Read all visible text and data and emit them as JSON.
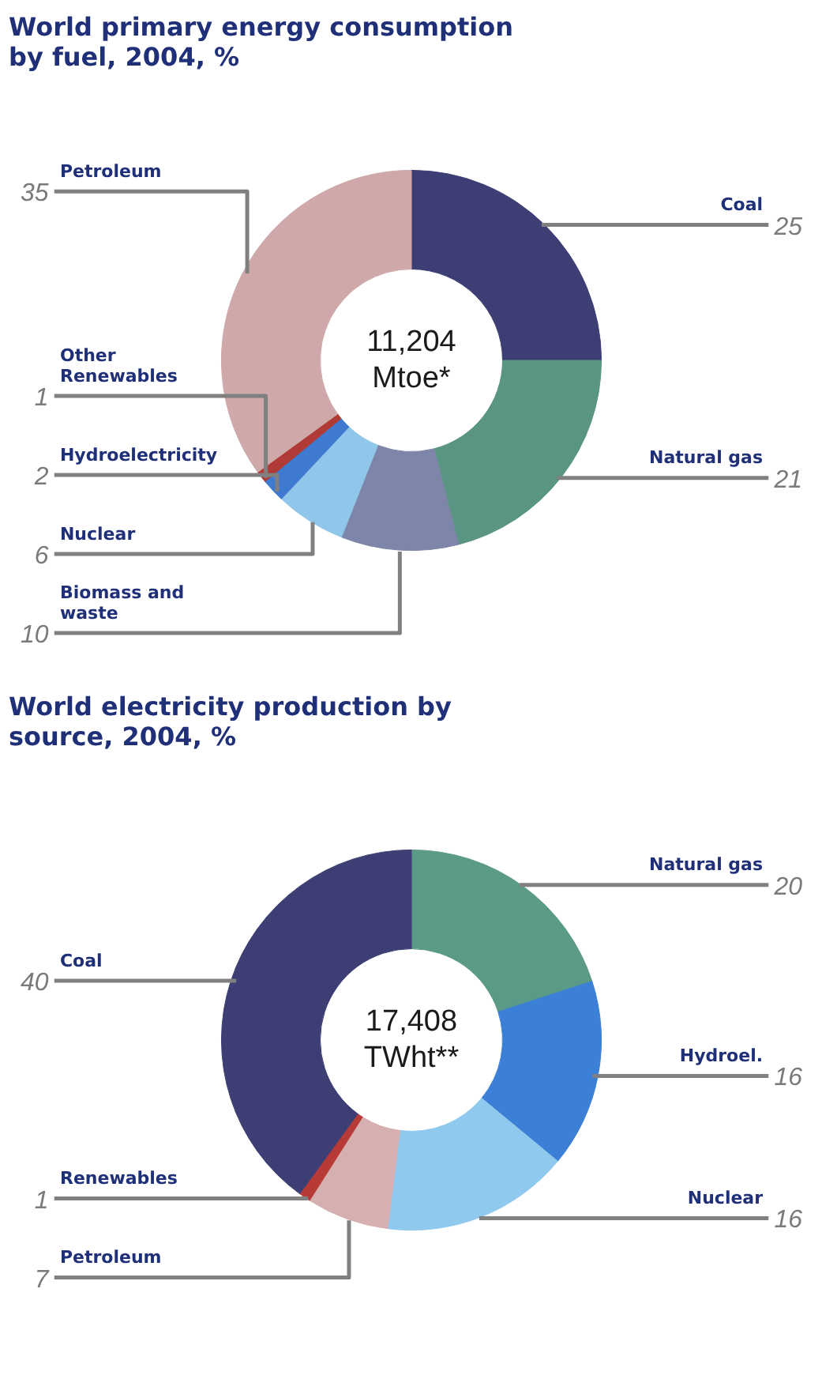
{
  "chart_data": [
    {
      "type": "donut",
      "title": "World primary energy consumption by fuel, 2004, %",
      "categories": [
        "Coal",
        "Natural gas",
        "Biomass and waste",
        "Nuclear",
        "Hydroelectricity",
        "Other Renewables",
        "Petroleum"
      ],
      "values": [
        25,
        21,
        10,
        6,
        2,
        1,
        35
      ],
      "colors": [
        "#3d3f74",
        "#5a9483",
        "#7d86a8",
        "#8fc6ea",
        "#3d7ad0",
        "#b03a36",
        "#cfa9a9"
      ],
      "data_labels": true,
      "annotations": [
        "11,204 Mtoe*"
      ]
    },
    {
      "type": "donut",
      "title": "World electricity production by source, 2004, %",
      "categories": [
        "Natural gas",
        "Hydroel.",
        "Nuclear",
        "Petroleum",
        "Renewables",
        "Coal"
      ],
      "values": [
        20,
        16,
        16,
        7,
        1,
        40
      ],
      "colors": [
        "#5a9a86",
        "#3c7fd6",
        "#8fc9ee",
        "#d6b0b0",
        "#b83a36",
        "#3d3f74"
      ],
      "data_labels": true,
      "annotations": [
        "17,408 TWht**"
      ]
    }
  ]
}
